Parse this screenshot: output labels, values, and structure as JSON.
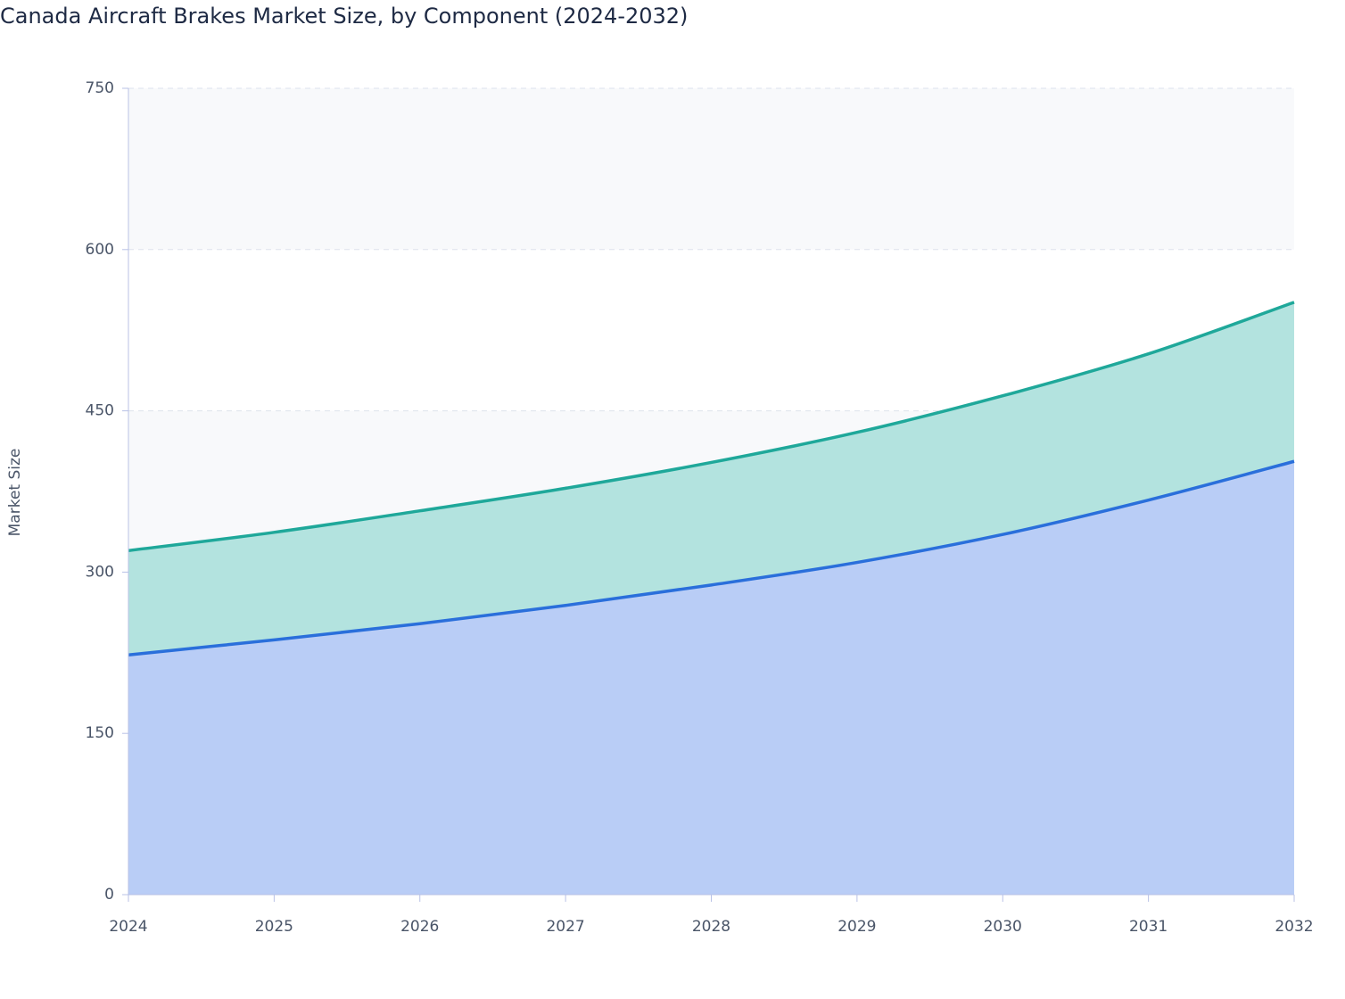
{
  "chart_data": {
    "type": "stacked-area",
    "title": "Canada Aircraft Brakes Market Size, by Component (2024-2032)",
    "y_label": "Market Size",
    "categories": [
      "2024",
      "2025",
      "2026",
      "2027",
      "2028",
      "2029",
      "2030",
      "2031",
      "2032"
    ],
    "series": [
      {
        "color": "#2a6fdb",
        "values": [
          223,
          237,
          252,
          269,
          288,
          309,
          335,
          367,
          403
        ]
      },
      {
        "color": "#1fa89a",
        "values": [
          97,
          100,
          105,
          109,
          114,
          121,
          129,
          136,
          148
        ]
      }
    ],
    "ylim": [
      0,
      750
    ],
    "yticks": [
      0,
      150,
      300,
      450,
      600,
      750
    ],
    "grid": true
  }
}
